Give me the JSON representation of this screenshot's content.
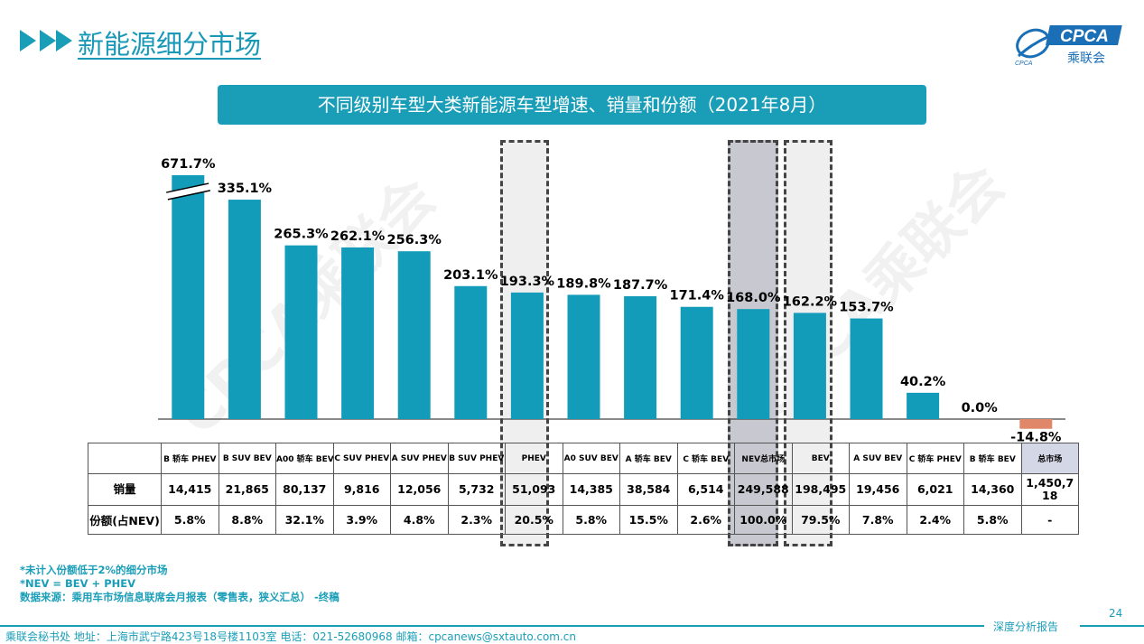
{
  "header": {
    "title": "新能源细分市场",
    "logo_text": "CPCA",
    "logo_sub": "乘联会",
    "logo_small": "CPCA"
  },
  "banner": "不同级别车型大类新能源车型增速、销量和份额（2021年8月）",
  "watermark": "CPCA乘联会",
  "chart_data": {
    "type": "bar",
    "title": "不同级别车型大类新能源车型增速、销量和份额（2021年8月）",
    "metric": "同比增速 (%)",
    "categories": [
      "B 轿车 PHEV",
      "B SUV BEV",
      "A00 轿车 BEV",
      "C SUV PHEV",
      "A SUV PHEV",
      "B SUV PHEV",
      "PHEV",
      "A0 SUV BEV",
      "A 轿车 BEV",
      "C 轿车 BEV",
      "NEV总市场",
      "BEV",
      "A SUV BEV",
      "C 轿车 PHEV",
      "B 轿车 BEV",
      "总市场"
    ],
    "values": [
      671.7,
      335.1,
      265.3,
      262.1,
      256.3,
      203.1,
      193.3,
      189.8,
      187.7,
      171.4,
      168.0,
      162.2,
      153.7,
      40.2,
      0.0,
      -14.8
    ],
    "labels": [
      "671.7%",
      "335.1%",
      "265.3%",
      "262.1%",
      "256.3%",
      "203.1%",
      "193.3%",
      "189.8%",
      "187.7%",
      "171.4%",
      "168.0%",
      "162.2%",
      "153.7%",
      "40.2%",
      "0.0%",
      "-14.8%"
    ],
    "axis_break": "671.7% bar truncated",
    "highlighted": [
      "PHEV",
      "NEV总市场",
      "BEV"
    ],
    "colors": {
      "positive": "#139cba",
      "negative": "#e0876a",
      "highlight_bg": "#efeff0",
      "nev_bg": "#c8c8d0"
    },
    "table": {
      "row_labels": [
        "销量",
        "份额(占NEV)"
      ],
      "sales": [
        "14,415",
        "21,865",
        "80,137",
        "9,816",
        "12,056",
        "5,732",
        "51,093",
        "14,385",
        "38,584",
        "6,514",
        "249,588",
        "198,495",
        "19,456",
        "6,021",
        "14,360",
        "1,450,718"
      ],
      "share": [
        "5.8%",
        "8.8%",
        "32.1%",
        "3.9%",
        "4.8%",
        "2.3%",
        "20.5%",
        "5.8%",
        "15.5%",
        "2.6%",
        "100.0%",
        "79.5%",
        "7.8%",
        "2.4%",
        "5.8%",
        "-"
      ]
    }
  },
  "notes": [
    "*未计入份额低于2%的细分市场",
    "*NEV = BEV + PHEV",
    "数据来源：乘用车市场信息联席会月报表（零售表，狭义汇总） -终稿"
  ],
  "page_number": "24",
  "footer": "乘联会秘书处   地址：上海市武宁路423号18号楼1103室  电话：021-52680968   邮箱：cpcanews@sxtauto.com.cn",
  "footer_right": "深度分析报告"
}
